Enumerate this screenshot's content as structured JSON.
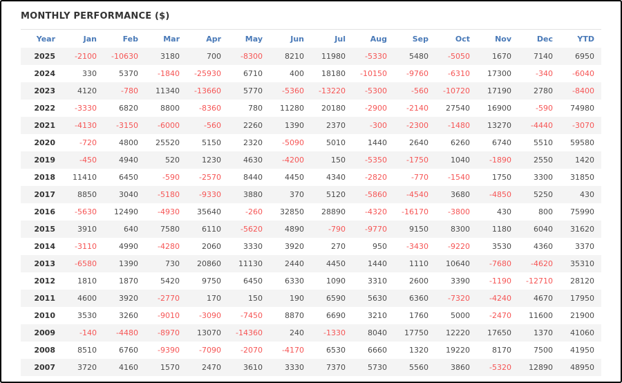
{
  "title": "MONTHLY PERFORMANCE ($)",
  "colors": {
    "header_text": "#4a7ab8",
    "negative_value": "#f65555",
    "positive_value": "#4a4a4a",
    "stripe": "#f4f4f4"
  },
  "chart_data": {
    "type": "table",
    "title": "MONTHLY PERFORMANCE ($)",
    "columns": [
      "Year",
      "Jan",
      "Feb",
      "Mar",
      "Apr",
      "May",
      "Jun",
      "Jul",
      "Aug",
      "Sep",
      "Oct",
      "Nov",
      "Dec",
      "YTD"
    ],
    "rows": [
      {
        "year": "2025",
        "values": [
          -2100,
          -10630,
          3180,
          700,
          -8300,
          8210,
          11980,
          -5330,
          5480,
          -5050,
          1670,
          7140,
          6950
        ]
      },
      {
        "year": "2024",
        "values": [
          330,
          5370,
          -1840,
          -25930,
          6710,
          400,
          18180,
          -10150,
          -9760,
          -6310,
          17300,
          -340,
          -6040
        ]
      },
      {
        "year": "2023",
        "values": [
          4120,
          -780,
          11340,
          -13660,
          5770,
          -5360,
          -13220,
          -5300,
          -560,
          -10720,
          17190,
          2780,
          -8400
        ]
      },
      {
        "year": "2022",
        "values": [
          -3330,
          6820,
          8800,
          -8360,
          780,
          11280,
          20180,
          -2900,
          -2140,
          27540,
          16900,
          -590,
          74980
        ]
      },
      {
        "year": "2021",
        "values": [
          -4130,
          -3150,
          -6000,
          -560,
          2260,
          1390,
          2370,
          -300,
          -2300,
          -1480,
          13270,
          -4440,
          -3070
        ]
      },
      {
        "year": "2020",
        "values": [
          -720,
          4800,
          25520,
          5150,
          2320,
          -5090,
          5010,
          1440,
          2640,
          6260,
          6740,
          5510,
          59580
        ]
      },
      {
        "year": "2019",
        "values": [
          -450,
          4940,
          520,
          1230,
          4630,
          -4200,
          150,
          -5350,
          -1750,
          1040,
          -1890,
          2550,
          1420
        ]
      },
      {
        "year": "2018",
        "values": [
          11410,
          6450,
          -590,
          -2570,
          8440,
          4450,
          4340,
          -2820,
          -770,
          -1540,
          1750,
          3300,
          31850
        ]
      },
      {
        "year": "2017",
        "values": [
          8850,
          3040,
          -5180,
          -9330,
          3880,
          370,
          5120,
          -5860,
          -4540,
          3680,
          -4850,
          5250,
          430
        ]
      },
      {
        "year": "2016",
        "values": [
          -5630,
          12490,
          -4930,
          35640,
          -260,
          32850,
          28890,
          -4320,
          -16170,
          -3800,
          430,
          800,
          75990
        ]
      },
      {
        "year": "2015",
        "values": [
          3910,
          640,
          7580,
          6110,
          -5620,
          4890,
          -790,
          -9770,
          9150,
          8300,
          1180,
          6040,
          31620
        ]
      },
      {
        "year": "2014",
        "values": [
          -3110,
          4990,
          -4280,
          2060,
          3330,
          3920,
          270,
          950,
          -3430,
          -9220,
          3530,
          4360,
          3370
        ]
      },
      {
        "year": "2013",
        "values": [
          -6580,
          1390,
          730,
          20860,
          11130,
          2440,
          4450,
          1440,
          1110,
          10640,
          -7680,
          -4620,
          35310
        ]
      },
      {
        "year": "2012",
        "values": [
          1810,
          1870,
          5420,
          9750,
          6450,
          6330,
          1090,
          3310,
          2600,
          3390,
          -1190,
          -12710,
          28120
        ]
      },
      {
        "year": "2011",
        "values": [
          4600,
          3920,
          -2770,
          170,
          150,
          190,
          6590,
          5630,
          6360,
          -7320,
          -4240,
          4670,
          17950
        ]
      },
      {
        "year": "2010",
        "values": [
          3530,
          3260,
          -9010,
          -3090,
          -7450,
          8870,
          6690,
          3210,
          1760,
          5000,
          -2470,
          11600,
          21900
        ]
      },
      {
        "year": "2009",
        "values": [
          -140,
          -4480,
          -8970,
          13070,
          -14360,
          240,
          -1330,
          8040,
          17750,
          12220,
          17650,
          1370,
          41060
        ]
      },
      {
        "year": "2008",
        "values": [
          8510,
          6760,
          -9390,
          -7090,
          -2070,
          -4170,
          6530,
          6660,
          1320,
          19220,
          8170,
          7500,
          41950
        ]
      },
      {
        "year": "2007",
        "values": [
          3720,
          4160,
          1570,
          2470,
          3610,
          3330,
          7370,
          5730,
          5560,
          3860,
          -5320,
          12890,
          48950
        ]
      }
    ]
  }
}
